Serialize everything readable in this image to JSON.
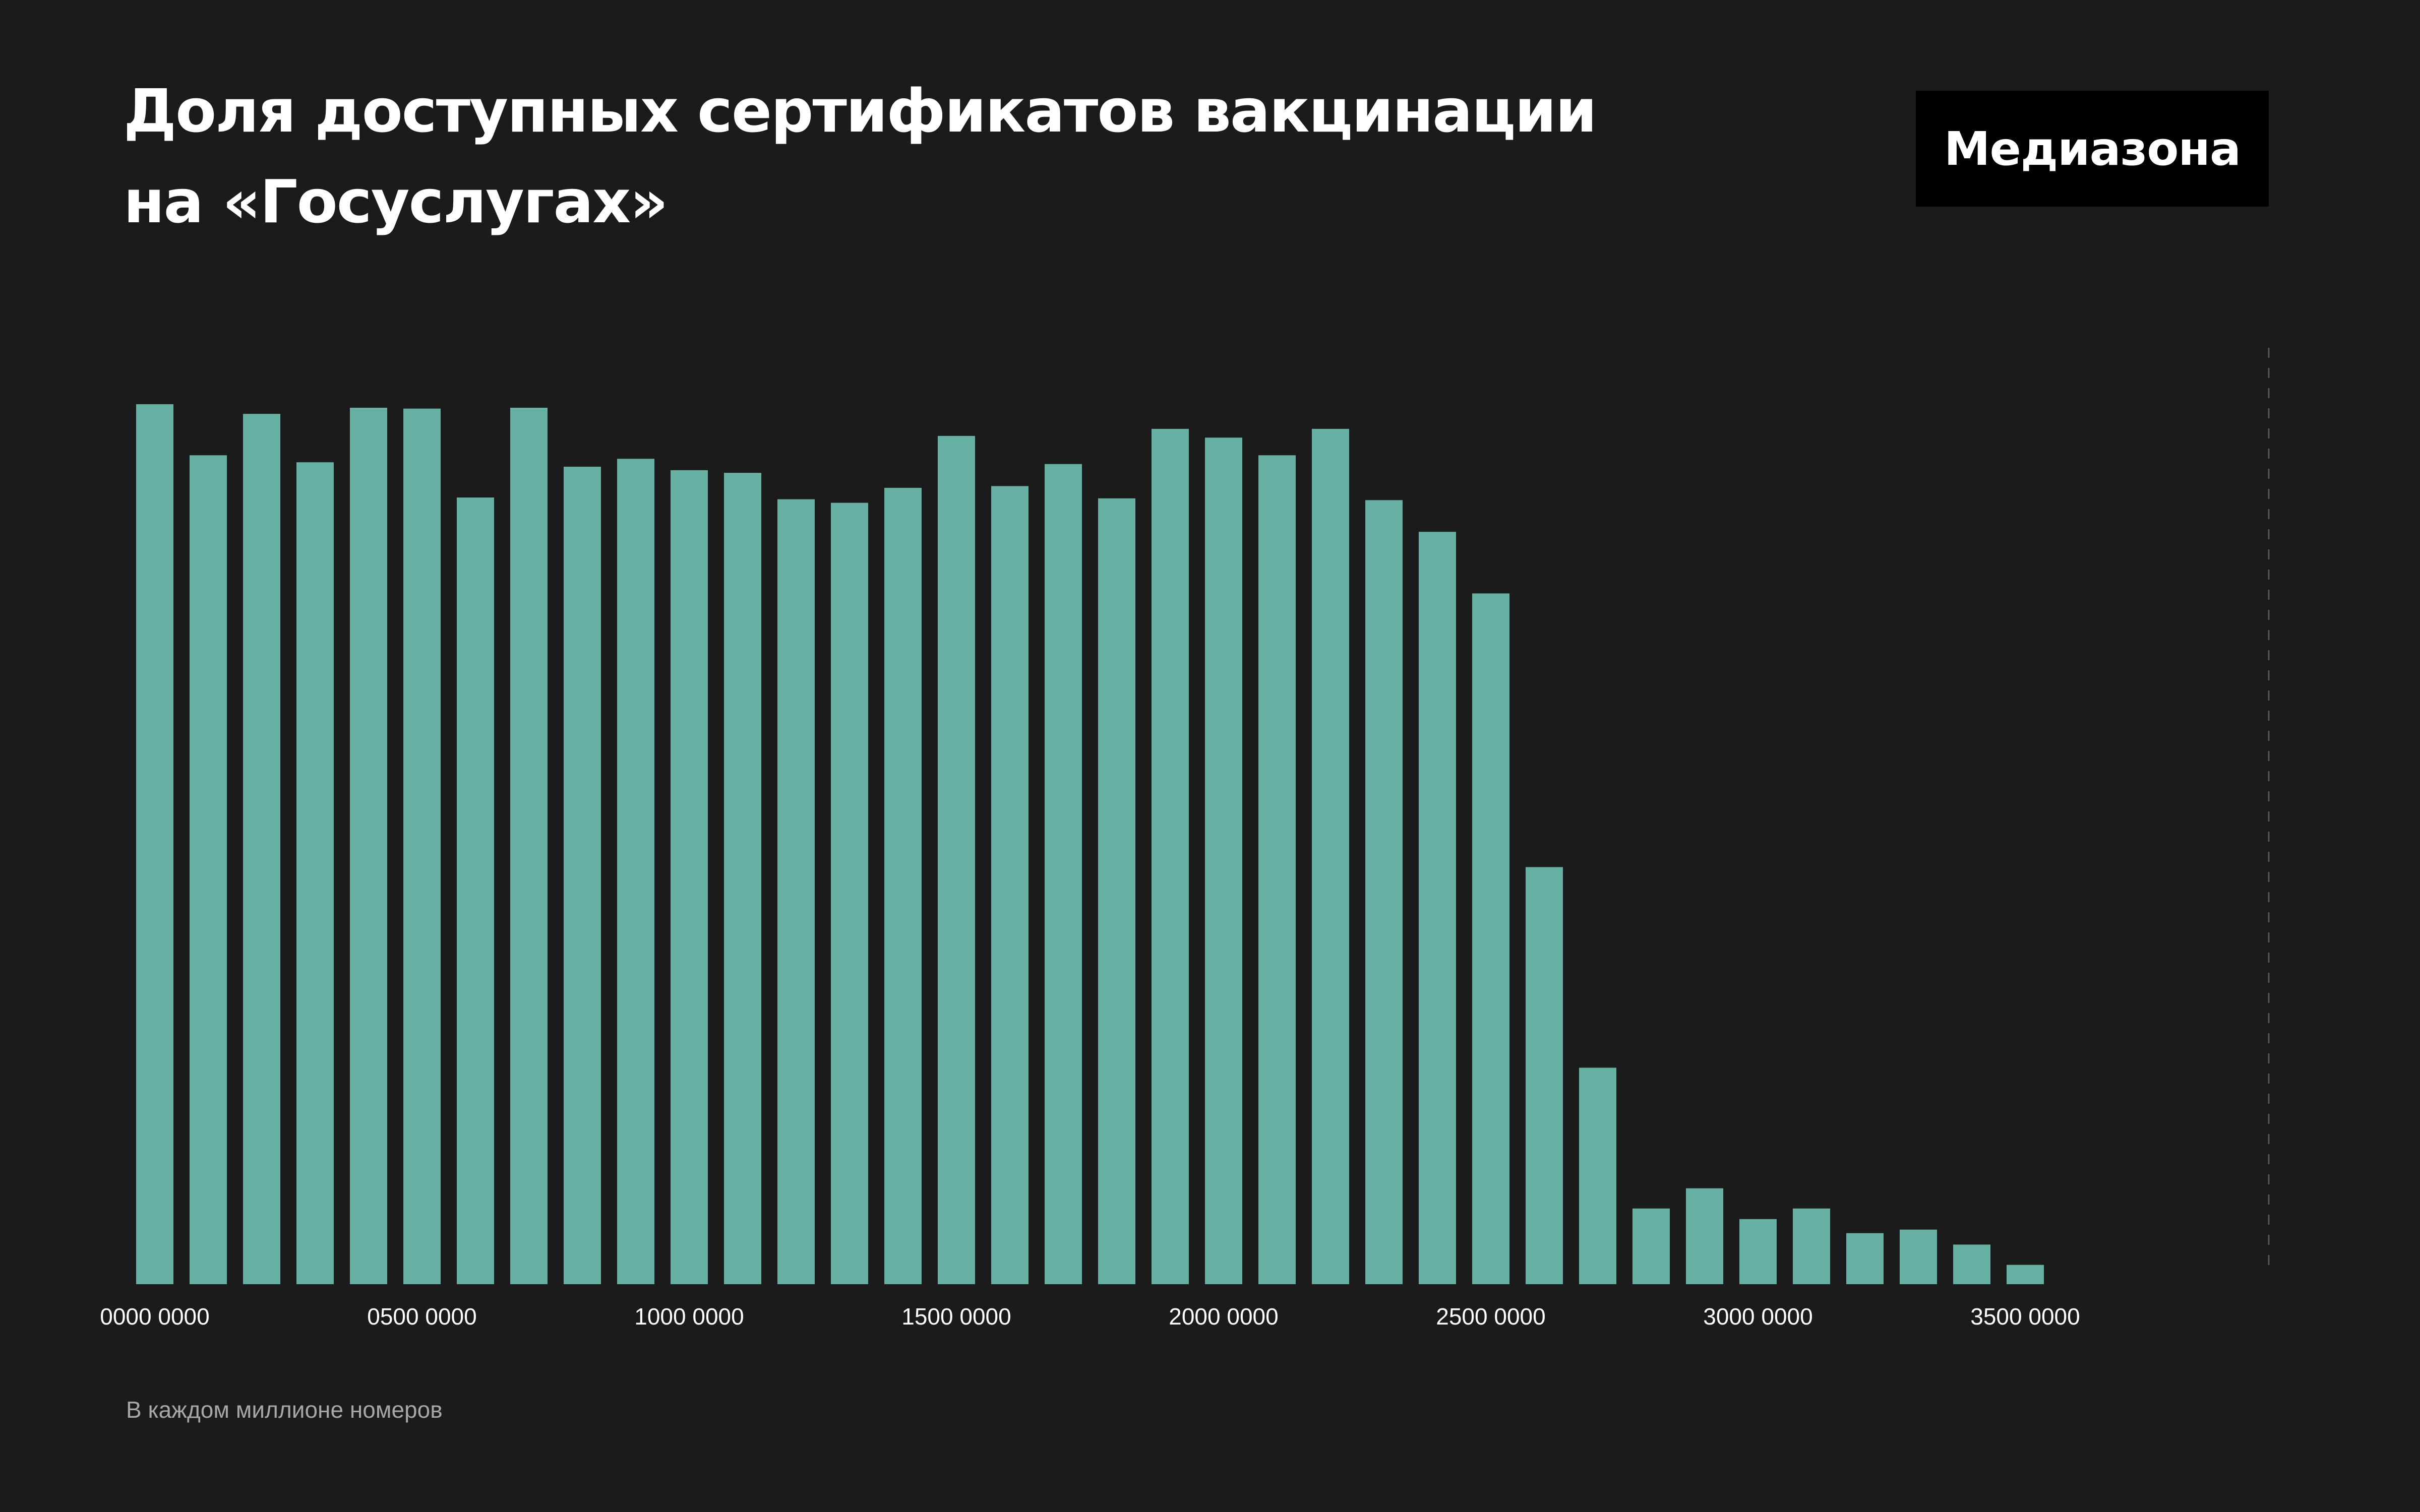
{
  "header": {
    "title_line1": "Доля доступных сертификатов вакцинации",
    "title_line2": "на «Госуслугах»",
    "logo": "Медиазона"
  },
  "footer": {
    "note": "В каждом миллионе номеров"
  },
  "chart_data": {
    "type": "bar",
    "title": "Доля доступных сертификатов вакцинации на «Госуслугах»",
    "xlabel": "",
    "ylabel": "",
    "unit_note": "В каждом миллионе номеров",
    "bar_color": "#66b1a3",
    "background": "#1b1b1b",
    "grid": false,
    "y_axis_labels": false,
    "tick_labels": [
      "0000 0000",
      "0500 0000",
      "1000 0000",
      "1500 0000",
      "2000 0000",
      "2500 0000",
      "3000 0000",
      "3500 0000"
    ],
    "tick_every": 5,
    "categories": [
      "0000",
      "0100",
      "0200",
      "0300",
      "0400",
      "0500",
      "0600",
      "0700",
      "0800",
      "0900",
      "1000",
      "1100",
      "1200",
      "1300",
      "1400",
      "1500",
      "1600",
      "1700",
      "1800",
      "1900",
      "2000",
      "2100",
      "2200",
      "2300",
      "2400",
      "2500",
      "2600",
      "2700",
      "2800",
      "2900",
      "3000",
      "3100",
      "3200",
      "3300",
      "3400",
      "3500"
    ],
    "values": [
      100,
      94.2,
      98.9,
      93.4,
      99.6,
      99.5,
      89.4,
      99.6,
      92.9,
      93.8,
      92.5,
      92.2,
      89.2,
      88.8,
      90.5,
      96.4,
      90.7,
      93.2,
      89.3,
      97.2,
      96.2,
      94.2,
      97.2,
      89.1,
      85.5,
      78.5,
      47.4,
      24.6,
      8.6,
      10.9,
      7.4,
      8.6,
      5.8,
      6.2,
      4.5,
      2.2
    ],
    "ylim": [
      0,
      100
    ],
    "reference_line": "dashed vertical line at right edge of plot"
  }
}
